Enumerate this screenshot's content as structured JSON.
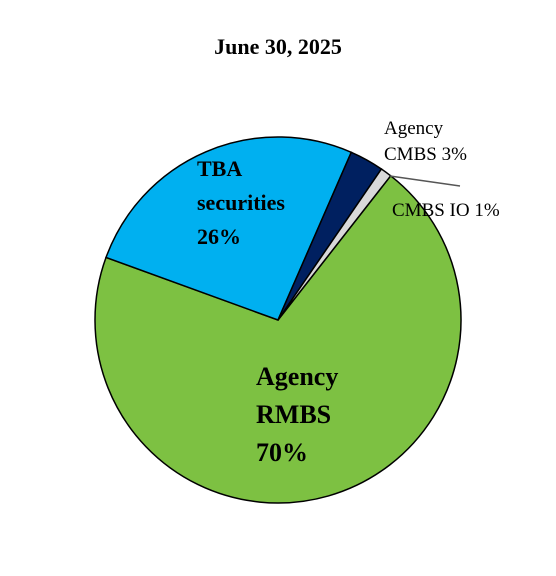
{
  "chart_data": {
    "type": "pie",
    "title": "June 30, 2025",
    "categories": [
      "Agency RMBS",
      "TBA securities",
      "Agency CMBS",
      "CMBS IO"
    ],
    "values": [
      70,
      26,
      3,
      1
    ],
    "value_labels": [
      "70%",
      "26%",
      "3%",
      "1%"
    ],
    "colors": [
      "#7dc142",
      "#00b0f0",
      "#002060",
      "#d9d9d9"
    ]
  }
}
